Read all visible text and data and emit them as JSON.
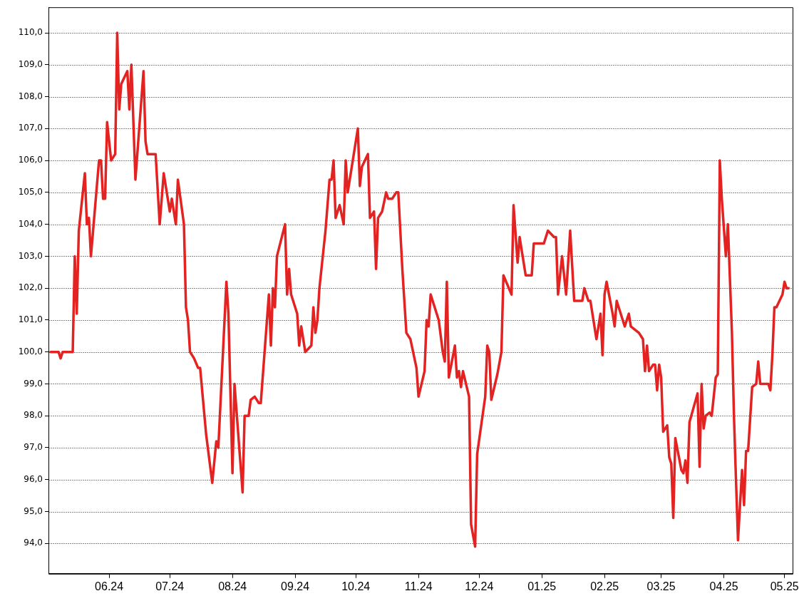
{
  "chart_data": {
    "type": "line",
    "grid": "y",
    "marker": "none",
    "line_style": "solid",
    "legend": false,
    "xlim": [
      "2024-05-02",
      "2025-05-05"
    ],
    "ylim": [
      93.05,
      110.8
    ],
    "xticks": [
      {
        "value": "2024-06-01",
        "label": "06.24"
      },
      {
        "value": "2024-07-01",
        "label": "07.24"
      },
      {
        "value": "2024-08-01",
        "label": "08.24"
      },
      {
        "value": "2024-09-01",
        "label": "09.24"
      },
      {
        "value": "2024-10-01",
        "label": "10.24"
      },
      {
        "value": "2024-11-01",
        "label": "11.24"
      },
      {
        "value": "2024-12-01",
        "label": "12.24"
      },
      {
        "value": "2025-01-01",
        "label": "01.25"
      },
      {
        "value": "2025-02-01",
        "label": "02.25"
      },
      {
        "value": "2025-03-01",
        "label": "03.25"
      },
      {
        "value": "2025-04-01",
        "label": "04.25"
      },
      {
        "value": "2025-05-01",
        "label": "05.25"
      }
    ],
    "yticks": [
      {
        "value": 94,
        "label": "94,0"
      },
      {
        "value": 95,
        "label": "95,0"
      },
      {
        "value": 96,
        "label": "96,0"
      },
      {
        "value": 97,
        "label": "97,0"
      },
      {
        "value": 98,
        "label": "98,0"
      },
      {
        "value": 99,
        "label": "99,0"
      },
      {
        "value": 100,
        "label": "100,0"
      },
      {
        "value": 101,
        "label": "101,0"
      },
      {
        "value": 102,
        "label": "102,0"
      },
      {
        "value": 103,
        "label": "103,0"
      },
      {
        "value": 104,
        "label": "104,0"
      },
      {
        "value": 105,
        "label": "105,0"
      },
      {
        "value": 106,
        "label": "106,0"
      },
      {
        "value": 107,
        "label": "107,0"
      },
      {
        "value": 108,
        "label": "108,0"
      },
      {
        "value": 109,
        "label": "109,0"
      },
      {
        "value": 110,
        "label": "110,0"
      }
    ],
    "x": [
      "2024-05-03",
      "2024-05-07",
      "2024-05-08",
      "2024-05-09",
      "2024-05-14",
      "2024-05-15",
      "2024-05-16",
      "2024-05-17",
      "2024-05-20",
      "2024-05-21",
      "2024-05-22",
      "2024-05-23",
      "2024-05-27",
      "2024-05-28",
      "2024-05-29",
      "2024-05-30",
      "2024-05-31",
      "2024-06-02",
      "2024-06-04",
      "2024-06-05",
      "2024-06-06",
      "2024-06-07",
      "2024-06-10",
      "2024-06-11",
      "2024-06-12",
      "2024-06-14",
      "2024-06-18",
      "2024-06-19",
      "2024-06-20",
      "2024-06-24",
      "2024-06-26",
      "2024-06-28",
      "2024-07-01",
      "2024-07-02",
      "2024-07-04",
      "2024-07-05",
      "2024-07-08",
      "2024-07-09",
      "2024-07-10",
      "2024-07-11",
      "2024-07-13",
      "2024-07-15",
      "2024-07-16",
      "2024-07-19",
      "2024-07-22",
      "2024-07-24",
      "2024-07-25",
      "2024-07-29",
      "2024-07-30",
      "2024-08-01",
      "2024-08-02",
      "2024-08-06",
      "2024-08-07",
      "2024-08-09",
      "2024-08-10",
      "2024-08-12",
      "2024-08-14",
      "2024-08-15",
      "2024-08-19",
      "2024-08-20",
      "2024-08-21",
      "2024-08-22",
      "2024-08-23",
      "2024-08-27",
      "2024-08-28",
      "2024-08-29",
      "2024-08-30",
      "2024-09-02",
      "2024-09-03",
      "2024-09-04",
      "2024-09-06",
      "2024-09-09",
      "2024-09-10",
      "2024-09-11",
      "2024-09-12",
      "2024-09-13",
      "2024-09-16",
      "2024-09-18",
      "2024-09-19",
      "2024-09-20",
      "2024-09-21",
      "2024-09-23",
      "2024-09-25",
      "2024-09-26",
      "2024-09-27",
      "2024-10-02",
      "2024-10-03",
      "2024-10-04",
      "2024-10-07",
      "2024-10-08",
      "2024-10-10",
      "2024-10-11",
      "2024-10-12",
      "2024-10-14",
      "2024-10-16",
      "2024-10-17",
      "2024-10-19",
      "2024-10-21",
      "2024-10-22",
      "2024-10-24",
      "2024-10-26",
      "2024-10-28",
      "2024-10-31",
      "2024-11-01",
      "2024-11-04",
      "2024-11-05",
      "2024-11-06",
      "2024-11-07",
      "2024-11-11",
      "2024-11-13",
      "2024-11-14",
      "2024-11-15",
      "2024-11-16",
      "2024-11-19",
      "2024-11-20",
      "2024-11-21",
      "2024-11-22",
      "2024-11-23",
      "2024-11-26",
      "2024-11-27",
      "2024-11-29",
      "2024-11-30",
      "2024-12-04",
      "2024-12-05",
      "2024-12-06",
      "2024-12-07",
      "2024-12-10",
      "2024-12-12",
      "2024-12-13",
      "2024-12-17",
      "2024-12-18",
      "2024-12-20",
      "2024-12-21",
      "2024-12-24",
      "2024-12-27",
      "2024-12-28",
      "2025-01-02",
      "2025-01-04",
      "2025-01-07",
      "2025-01-08",
      "2025-01-09",
      "2025-01-11",
      "2025-01-13",
      "2025-01-15",
      "2025-01-17",
      "2025-01-21",
      "2025-01-22",
      "2025-01-24",
      "2025-01-25",
      "2025-01-28",
      "2025-01-30",
      "2025-01-31",
      "2025-02-01",
      "2025-02-02",
      "2025-02-05",
      "2025-02-06",
      "2025-02-07",
      "2025-02-09",
      "2025-02-11",
      "2025-02-13",
      "2025-02-14",
      "2025-02-18",
      "2025-02-20",
      "2025-02-21",
      "2025-02-22",
      "2025-02-23",
      "2025-02-25",
      "2025-02-26",
      "2025-02-27",
      "2025-02-28",
      "2025-03-01",
      "2025-03-02",
      "2025-03-04",
      "2025-03-05",
      "2025-03-06",
      "2025-03-07",
      "2025-03-08",
      "2025-03-11",
      "2025-03-12",
      "2025-03-13",
      "2025-03-14",
      "2025-03-15",
      "2025-03-19",
      "2025-03-20",
      "2025-03-21",
      "2025-03-22",
      "2025-03-23",
      "2025-03-25",
      "2025-03-26",
      "2025-03-28",
      "2025-03-29",
      "2025-03-30",
      "2025-03-31",
      "2025-04-02",
      "2025-04-03",
      "2025-04-05",
      "2025-04-06",
      "2025-04-07",
      "2025-04-08",
      "2025-04-10",
      "2025-04-11",
      "2025-04-12",
      "2025-04-13",
      "2025-04-15",
      "2025-04-17",
      "2025-04-18",
      "2025-04-19",
      "2025-04-23",
      "2025-04-24",
      "2025-04-25",
      "2025-04-26",
      "2025-04-27",
      "2025-04-30",
      "2025-05-01",
      "2025-05-02",
      "2025-05-03"
    ],
    "series": [
      {
        "color": "#e32222",
        "values": [
          100,
          100,
          99.8,
          100,
          100,
          103,
          101.2,
          103.8,
          105.6,
          104,
          104.2,
          103,
          106,
          106,
          104.8,
          104.8,
          107.2,
          106,
          106.2,
          110,
          107.6,
          108.4,
          108.8,
          107.6,
          109,
          105.4,
          108.8,
          106.6,
          106.2,
          106.2,
          104,
          105.6,
          104.4,
          104.8,
          104,
          105.4,
          104,
          101.4,
          101,
          100,
          99.8,
          99.5,
          99.5,
          97.4,
          95.9,
          97.2,
          97,
          102.2,
          101.2,
          96.2,
          99,
          95.6,
          98,
          98,
          98.5,
          98.6,
          98.4,
          98.4,
          101.8,
          100.2,
          102,
          101.4,
          103,
          104,
          101.8,
          102.6,
          101.8,
          101.2,
          100.2,
          100.8,
          100,
          100.2,
          101.4,
          100.6,
          101,
          102,
          103.8,
          105.4,
          105.4,
          106,
          104.2,
          104.6,
          104,
          106,
          105,
          107,
          105.2,
          105.8,
          106.2,
          104.2,
          104.4,
          102.6,
          104.2,
          104.4,
          105,
          104.8,
          104.8,
          105,
          105,
          102.6,
          100.6,
          100.4,
          99.5,
          98.6,
          99.4,
          101,
          100.8,
          101.8,
          101,
          100,
          99.7,
          102.2,
          99.2,
          100.2,
          99.2,
          99.4,
          98.9,
          99.4,
          98.6,
          94.6,
          93.9,
          96.8,
          98.6,
          100.2,
          100,
          98.5,
          99.3,
          100,
          102.4,
          101.8,
          104.6,
          102.8,
          103.6,
          102.4,
          102.4,
          103.4,
          103.4,
          103.8,
          103.6,
          103.6,
          101.8,
          103,
          101.8,
          103.8,
          101.6,
          101.6,
          102,
          101.6,
          101.6,
          100.4,
          101.2,
          99.9,
          101.8,
          102.2,
          101.2,
          100.8,
          101.6,
          101.2,
          100.8,
          101.2,
          100.8,
          100.6,
          100.4,
          99.4,
          100.2,
          99.4,
          99.6,
          99.6,
          98.8,
          99.6,
          99.2,
          97.5,
          97.7,
          96.7,
          96.5,
          94.8,
          97.3,
          96.3,
          96.2,
          96.6,
          95.9,
          97.8,
          98.7,
          96.4,
          99,
          97.6,
          98,
          98.1,
          98,
          99.2,
          99.3,
          106,
          104.8,
          103,
          104,
          100.6,
          98,
          96,
          94.1,
          96.3,
          95.2,
          96.9,
          96.9,
          98.9,
          99,
          99.7,
          99,
          99,
          98.8,
          99.9,
          101.4,
          101.4,
          101.8,
          102.2,
          102,
          102
        ]
      }
    ]
  }
}
